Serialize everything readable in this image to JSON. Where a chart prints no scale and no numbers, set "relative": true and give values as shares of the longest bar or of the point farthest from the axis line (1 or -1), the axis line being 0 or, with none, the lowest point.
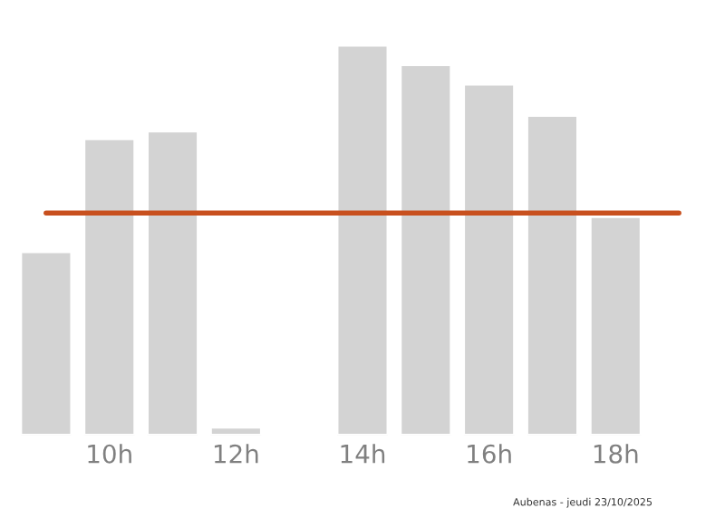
{
  "chart_data": {
    "type": "bar",
    "relative": true,
    "categories": [
      null,
      "10h",
      null,
      "12h",
      null,
      "14h",
      null,
      "16h",
      null,
      "18h",
      null
    ],
    "values": [
      0.47,
      0.76,
      0.78,
      0.02,
      null,
      1,
      0.95,
      0.9,
      0.82,
      0.56,
      null
    ],
    "color": "#d3d3d3",
    "ref_lines": [
      {
        "axis": "y",
        "value": 0.57,
        "color": "#c8501e"
      }
    ],
    "grid": false,
    "legend": false,
    "annotations": [
      "Aubenas - jeudi 23/10/2025"
    ]
  }
}
